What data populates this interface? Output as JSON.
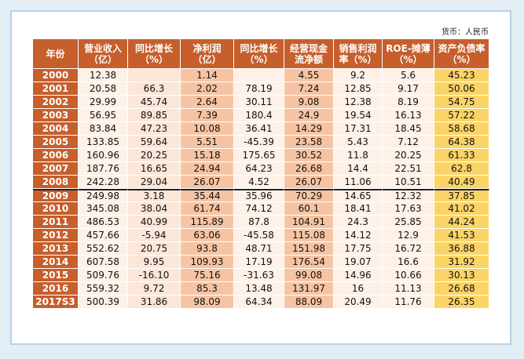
{
  "unit": "货币：人民币",
  "table": {
    "header": [
      [
        "年份"
      ],
      [
        "营业收入",
        "（亿）"
      ],
      [
        "同比增长",
        "（%）"
      ],
      [
        "净利润",
        "（亿）"
      ],
      [
        "同比增长",
        "（%）"
      ],
      [
        "经营现金",
        "流净额"
      ],
      [
        "销售利润",
        "率（%）"
      ],
      [
        "ROE-摊薄",
        "（%）"
      ],
      [
        "资产负债率",
        "（%）"
      ]
    ],
    "rows": [
      [
        "2000",
        "12.38",
        null,
        "1.14",
        null,
        "4.55",
        "9.2",
        "5.6",
        "45.23"
      ],
      [
        "2001",
        "20.58",
        "66.3",
        "2.02",
        "78.19",
        "7.24",
        "12.85",
        "9.17",
        "50.06"
      ],
      [
        "2002",
        "29.99",
        "45.74",
        "2.64",
        "30.11",
        "9.08",
        "12.38",
        "8.19",
        "54.75"
      ],
      [
        "2003",
        "56.95",
        "89.85",
        "7.39",
        "180.4",
        "24.9",
        "19.54",
        "16.13",
        "57.22"
      ],
      [
        "2004",
        "83.84",
        "47.23",
        "10.08",
        "36.41",
        "14.29",
        "17.31",
        "18.45",
        "58.68"
      ],
      [
        "2005",
        "133.85",
        "59.64",
        "5.51",
        "-45.39",
        "23.58",
        "5.43",
        "7.12",
        "64.38"
      ],
      [
        "2006",
        "160.96",
        "20.25",
        "15.18",
        "175.65",
        "30.52",
        "11.8",
        "20.25",
        "61.33"
      ],
      [
        "2007",
        "187.76",
        "16.65",
        "24.94",
        "64.23",
        "26.68",
        "14.4",
        "22.51",
        "62.8"
      ],
      [
        "2008",
        "242.28",
        "29.04",
        "26.07",
        "4.52",
        "26.07",
        "11.06",
        "10.51",
        "40.49"
      ],
      [
        "2009",
        "249.98",
        "3.18",
        "35.44",
        "35.96",
        "70.29",
        "14.65",
        "12.32",
        "37.85"
      ],
      [
        "2010",
        "345.08",
        "38.04",
        "61.74",
        "74.12",
        "60.1",
        "18.41",
        "17.63",
        "41.02"
      ],
      [
        "2011",
        "486.53",
        "40.99",
        "115.89",
        "87.8",
        "104.91",
        "24.3",
        "25.85",
        "44.24"
      ],
      [
        "2012",
        "457.66",
        "-5.94",
        "63.06",
        "-45.58",
        "115.08",
        "14.12",
        "12.9",
        "41.53"
      ],
      [
        "2013",
        "552.62",
        "20.75",
        "93.8",
        "48.71",
        "151.98",
        "17.75",
        "16.72",
        "36.88"
      ],
      [
        "2014",
        "607.58",
        "9.95",
        "109.93",
        "17.19",
        "176.54",
        "19.07",
        "16.6",
        "31.92"
      ],
      [
        "2015",
        "509.76",
        "-16.10",
        "75.16",
        "-31.63",
        "99.08",
        "14.96",
        "10.66",
        "30.13"
      ],
      [
        "2016",
        "559.32",
        "9.72",
        "85.3",
        "13.48",
        "131.97",
        "16",
        "11.13",
        "26.68"
      ],
      [
        "2017S3",
        "500.39",
        "31.86",
        "98.09",
        "64.34",
        "88.09",
        "20.49",
        "11.76",
        "26.35"
      ]
    ]
  }
}
